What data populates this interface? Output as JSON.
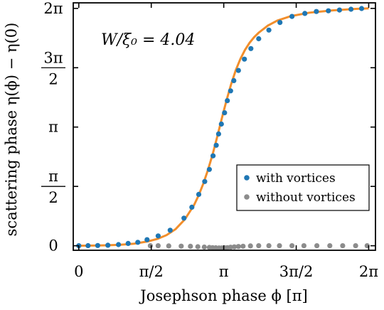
{
  "chart_data": {
    "type": "scatter",
    "annotation": "W/ξ₀ = 4.04",
    "xlabel": "Josephson phase ϕ [π]",
    "ylabel": "scattering phase η(ϕ) − η(0)",
    "xlim": [
      -0.12,
      6.43
    ],
    "ylim": [
      -0.12,
      6.43
    ],
    "x_ticks": [
      {
        "value": 0,
        "label": "0"
      },
      {
        "value": 1.5708,
        "label": "π/2"
      },
      {
        "value": 3.1416,
        "label": "π"
      },
      {
        "value": 4.7124,
        "label": "3π/2"
      },
      {
        "value": 6.2832,
        "label": "2π"
      }
    ],
    "y_ticks": [
      {
        "value": 0,
        "label": "0",
        "stacked": false
      },
      {
        "value": 1.5708,
        "label": "π/2",
        "stacked": true,
        "num": "π",
        "den": "2"
      },
      {
        "value": 3.1416,
        "label": "π",
        "stacked": false
      },
      {
        "value": 4.7124,
        "label": "3π/2",
        "stacked": true,
        "num": "3π",
        "den": "2"
      },
      {
        "value": 6.2832,
        "label": "2π",
        "stacked": false
      }
    ],
    "legend_position": "lower-right",
    "fit_curve": {
      "color": "#f28e2b",
      "x": [
        0,
        0.3,
        0.6,
        0.9,
        1.2,
        1.5,
        1.7,
        1.9,
        2.1,
        2.3,
        2.5,
        2.6,
        2.7,
        2.8,
        2.9,
        3.0,
        3.1,
        3.2,
        3.3,
        3.4,
        3.5,
        3.6,
        3.7,
        3.8,
        3.9,
        4.1,
        4.3,
        4.6,
        5.0,
        5.5,
        6.0,
        6.2832
      ],
      "y": [
        0.0,
        0.005,
        0.012,
        0.026,
        0.055,
        0.115,
        0.18,
        0.28,
        0.44,
        0.7,
        1.08,
        1.34,
        1.65,
        2.01,
        2.42,
        2.88,
        3.37,
        3.84,
        4.27,
        4.64,
        4.94,
        5.18,
        5.37,
        5.52,
        5.64,
        5.83,
        5.96,
        6.08,
        6.17,
        6.23,
        6.27,
        6.2832
      ]
    },
    "series": [
      {
        "name": "with vortices",
        "color": "#1f77b4",
        "x": [
          0,
          0.2,
          0.41,
          0.63,
          0.86,
          1.07,
          1.28,
          1.48,
          1.72,
          1.98,
          2.28,
          2.45,
          2.6,
          2.73,
          2.83,
          2.91,
          2.98,
          3.03,
          3.09,
          3.16,
          3.22,
          3.29,
          3.36,
          3.46,
          3.59,
          3.73,
          3.9,
          4.12,
          4.36,
          4.62,
          4.9,
          5.15,
          5.41,
          5.65,
          5.9,
          6.13
        ],
        "y": [
          0.0,
          0.003,
          0.007,
          0.014,
          0.03,
          0.06,
          0.09,
          0.16,
          0.26,
          0.41,
          0.73,
          1.02,
          1.36,
          1.7,
          2.02,
          2.38,
          2.66,
          2.96,
          3.22,
          3.52,
          3.84,
          4.1,
          4.37,
          4.64,
          4.94,
          5.22,
          5.48,
          5.71,
          5.91,
          6.07,
          6.15,
          6.2,
          6.22,
          6.24,
          6.26,
          6.28
        ]
      },
      {
        "name": "without vortices",
        "color": "#8c8c8c",
        "x": [
          1.55,
          1.72,
          1.95,
          2.22,
          2.42,
          2.58,
          2.72,
          2.83,
          2.9,
          2.97,
          3.04,
          3.1,
          3.16,
          3.22,
          3.29,
          3.37,
          3.46,
          3.56,
          3.72,
          3.9,
          4.12,
          4.35,
          4.62,
          4.88,
          5.16,
          5.44,
          5.72,
          6.0,
          6.25
        ],
        "y": [
          0.0,
          0.0,
          -0.005,
          -0.01,
          -0.015,
          -0.025,
          -0.035,
          -0.045,
          -0.05,
          -0.055,
          -0.058,
          -0.058,
          -0.055,
          -0.05,
          -0.04,
          -0.03,
          -0.02,
          -0.012,
          -0.005,
          0.0,
          0.0,
          0.0,
          0.0,
          0.0,
          0.0,
          0.0,
          0.0,
          0.0,
          0.0
        ]
      }
    ]
  }
}
